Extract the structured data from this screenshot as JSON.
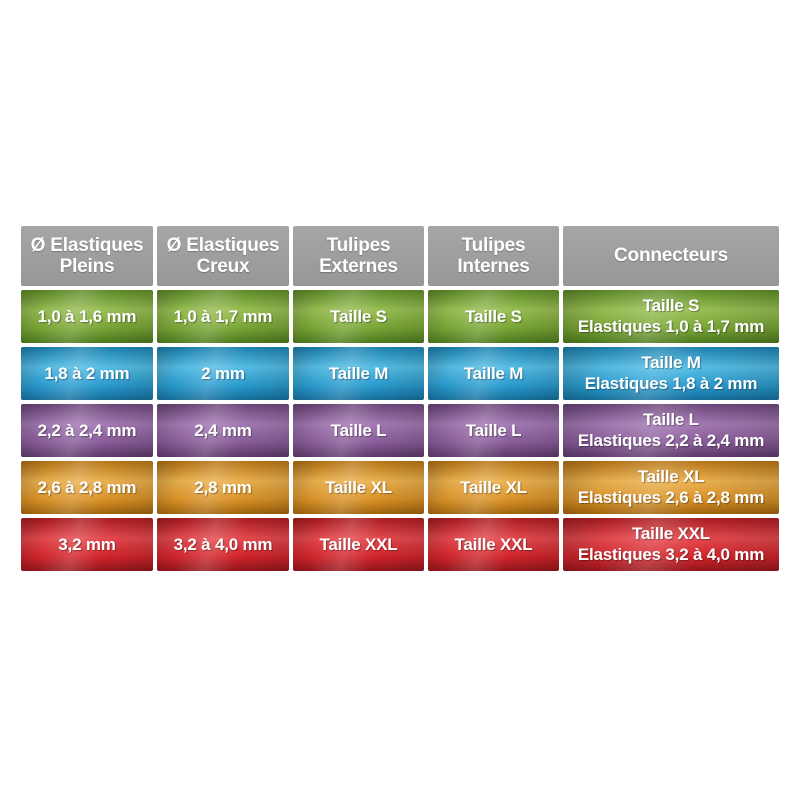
{
  "page": {
    "background": "#ffffff"
  },
  "table": {
    "header": {
      "background": "#9d9fa1",
      "text_color": "#ffffff",
      "columns": [
        {
          "label": "Ø Elastiques Pleins"
        },
        {
          "label": "Ø Elastiques Creux"
        },
        {
          "label": "Tulipes Externes"
        },
        {
          "label": "Tulipes Internes"
        },
        {
          "label": "Connecteurs"
        }
      ]
    },
    "rows": [
      {
        "size": "S",
        "color_name": "green",
        "colors": {
          "dark": "#5e8a28",
          "light": "#99bf54",
          "base": "#79a636",
          "deep": "#4e7a1e"
        },
        "cells": [
          "1,0 à 1,6 mm",
          "1,0 à 1,7 mm",
          "Taille S",
          "Taille S"
        ],
        "connector_line1": "Taille S",
        "connector_line2": "Elastiques 1,0 à 1,7 mm"
      },
      {
        "size": "M",
        "color_name": "blue",
        "colors": {
          "dark": "#1b7fae",
          "light": "#55bde4",
          "base": "#2b9cd0",
          "deep": "#156f9c"
        },
        "cells": [
          "1,8 à 2 mm",
          "2 mm",
          "Taille M",
          "Taille M"
        ],
        "connector_line1": "Taille M",
        "connector_line2": "Elastiques 1,8 à 2 mm"
      },
      {
        "size": "L",
        "color_name": "purple",
        "colors": {
          "dark": "#6b4579",
          "light": "#a379b3",
          "base": "#8a5d9b",
          "deep": "#5d3a6a"
        },
        "cells": [
          "2,2 à 2,4 mm",
          "2,4 mm",
          "Taille L",
          "Taille L"
        ],
        "connector_line1": "Taille L",
        "connector_line2": "Elastiques 2,2 à 2,4 mm"
      },
      {
        "size": "XL",
        "color_name": "orange",
        "colors": {
          "dark": "#b57315",
          "light": "#eab04e",
          "base": "#dc9328",
          "deep": "#a1650e"
        },
        "cells": [
          "2,6 à 2,8 mm",
          "2,8 mm",
          "Taille XL",
          "Taille XL"
        ],
        "connector_line1": "Taille XL",
        "connector_line2": "Elastiques 2,6 à 2,8 mm"
      },
      {
        "size": "XXL",
        "color_name": "red",
        "colors": {
          "dark": "#a81b20",
          "light": "#e4494e",
          "base": "#d3262c",
          "deep": "#93161b"
        },
        "cells": [
          "3,2 mm",
          "3,2 à 4,0 mm",
          "Taille XXL",
          "Taille XXL"
        ],
        "connector_line1": "Taille XXL",
        "connector_line2": "Elastiques 3,2 à 4,0 mm"
      }
    ]
  }
}
